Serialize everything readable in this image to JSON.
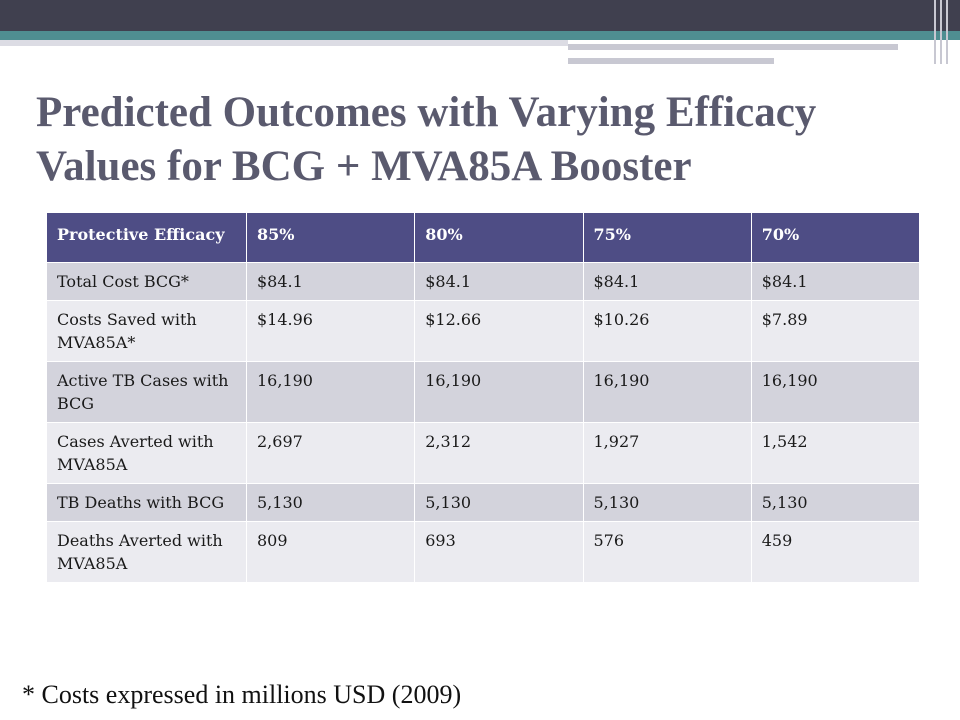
{
  "slide": {
    "title": "Predicted Outcomes with Varying Efficacy Values for BCG + MVA85A Booster",
    "footnote": "* Costs expressed in millions USD (2009)"
  },
  "table": {
    "headers": [
      "Protective Efficacy",
      "85%",
      "80%",
      "75%",
      "70%"
    ],
    "rows": [
      [
        "Total Cost BCG*",
        "$84.1",
        "$84.1",
        "$84.1",
        "$84.1"
      ],
      [
        "Costs Saved with MVA85A*",
        "$14.96",
        "$12.66",
        "$10.26",
        "$7.89"
      ],
      [
        "Active TB Cases with BCG",
        "16,190",
        "16,190",
        "16,190",
        "16,190"
      ],
      [
        "Cases Averted with MVA85A",
        "2,697",
        "2,312",
        "1,927",
        "1,542"
      ],
      [
        "TB Deaths with BCG",
        "5,130",
        "5,130",
        "5,130",
        "5,130"
      ],
      [
        "Deaths Averted with MVA85A",
        "809",
        "693",
        "576",
        "459"
      ]
    ]
  },
  "colors": {
    "header_bg": "#4e4d85",
    "row_dark": "#d3d3dc",
    "row_light": "#ebebf0",
    "title": "#5a5a6e",
    "top_bar": "#40404f",
    "teal_bar": "#4f8e91"
  }
}
